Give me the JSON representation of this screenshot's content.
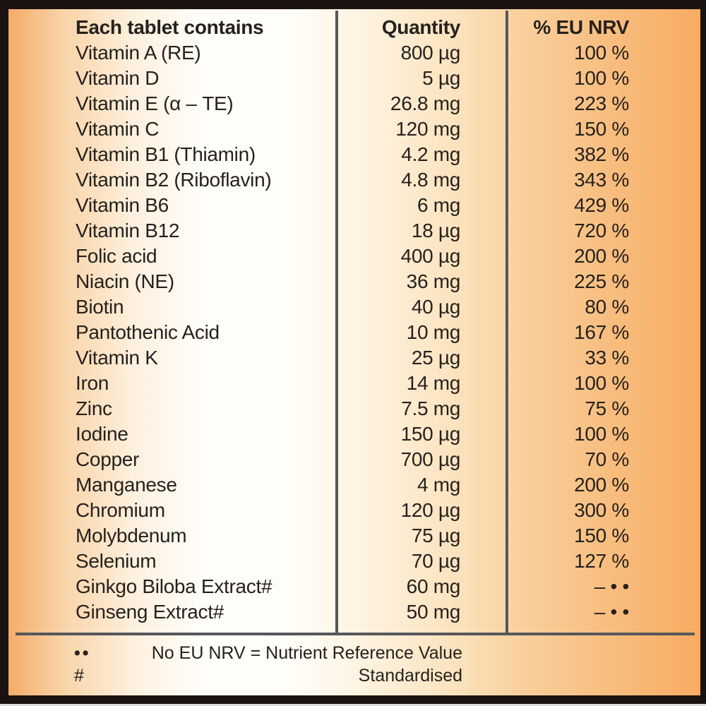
{
  "label": {
    "header": {
      "ingredient": "Each tablet contains",
      "quantity": "Quantity",
      "nrv": "% EU NRV"
    },
    "rows": [
      {
        "name": "Vitamin A (RE)",
        "quantity": "800 µg",
        "nrv": "100 %"
      },
      {
        "name": "Vitamin D",
        "quantity": "5 µg",
        "nrv": "100 %"
      },
      {
        "name": "Vitamin E (α – TE)",
        "quantity": "26.8 mg",
        "nrv": "223 %"
      },
      {
        "name": "Vitamin C",
        "quantity": "120 mg",
        "nrv": "150 %"
      },
      {
        "name": "Vitamin B1 (Thiamin)",
        "quantity": "4.2 mg",
        "nrv": "382 %"
      },
      {
        "name": "Vitamin B2 (Riboflavin)",
        "quantity": "4.8 mg",
        "nrv": "343 %"
      },
      {
        "name": "Vitamin B6",
        "quantity": "6 mg",
        "nrv": "429 %"
      },
      {
        "name": "Vitamin B12",
        "quantity": "18 µg",
        "nrv": "720 %"
      },
      {
        "name": "Folic acid",
        "quantity": "400 µg",
        "nrv": "200 %"
      },
      {
        "name": "Niacin (NE)",
        "quantity": "36 mg",
        "nrv": "225 %"
      },
      {
        "name": "Biotin",
        "quantity": "40 µg",
        "nrv": "80 %"
      },
      {
        "name": "Pantothenic Acid",
        "quantity": "10 mg",
        "nrv": "167 %"
      },
      {
        "name": "Vitamin K",
        "quantity": "25 µg",
        "nrv": "33 %"
      },
      {
        "name": "Iron",
        "quantity": "14 mg",
        "nrv": "100 %"
      },
      {
        "name": "Zinc",
        "quantity": "7.5 mg",
        "nrv": "75 %"
      },
      {
        "name": "Iodine",
        "quantity": "150 µg",
        "nrv": "100 %"
      },
      {
        "name": "Copper",
        "quantity": "700 µg",
        "nrv": "70 %"
      },
      {
        "name": "Manganese",
        "quantity": "4 mg",
        "nrv": "200 %"
      },
      {
        "name": "Chromium",
        "quantity": "120 µg",
        "nrv": "300 %"
      },
      {
        "name": "Molybdenum",
        "quantity": "75 µg",
        "nrv": "150 %"
      },
      {
        "name": "Selenium",
        "quantity": "70 µg",
        "nrv": "127 %"
      },
      {
        "name": "Ginkgo Biloba Extract#",
        "quantity": "60 mg",
        "nrv": "– • •"
      },
      {
        "name": "Ginseng Extract#",
        "quantity": "50 mg",
        "nrv": "– • •"
      }
    ],
    "footnotes": [
      {
        "symbol": "••",
        "text": "No EU NRV = Nutrient Reference Value"
      },
      {
        "symbol": "#",
        "text": "Standardised"
      }
    ],
    "colors": {
      "frame": "#1a1210",
      "divider": "#56575b",
      "text": "#26211d",
      "background_orange": "#f8ab62",
      "background_light": "#fffefa"
    }
  }
}
